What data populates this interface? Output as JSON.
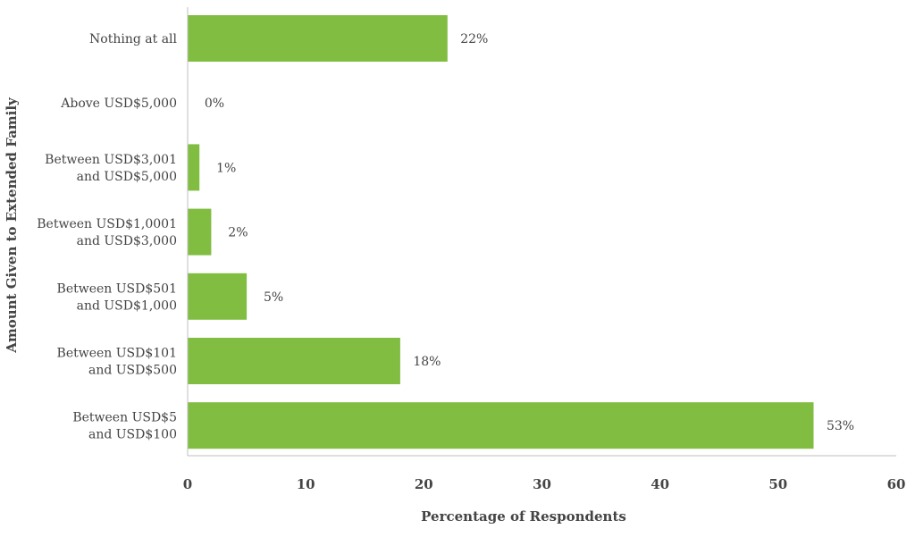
{
  "chart_data": {
    "type": "bar",
    "orientation": "horizontal",
    "categories": [
      [
        "Nothing at all"
      ],
      [
        "Above USD$5,000"
      ],
      [
        "Between USD$3,001",
        "and USD$5,000"
      ],
      [
        "Between USD$1,0001",
        "and USD$3,000"
      ],
      [
        "Between USD$501",
        "and USD$1,000"
      ],
      [
        "Between USD$101",
        "and USD$500"
      ],
      [
        "Between USD$5",
        "and USD$100"
      ]
    ],
    "values": [
      22,
      0,
      1,
      2,
      5,
      18,
      53
    ],
    "value_labels": [
      "22%",
      "0%",
      "1%",
      "2%",
      "5%",
      "18%",
      "53%"
    ],
    "xlabel": "Percentage of Respondents",
    "ylabel": "Amount Given to Extended Family",
    "xlim": [
      0,
      60
    ],
    "xticks": [
      0,
      10,
      20,
      30,
      40,
      50,
      60
    ],
    "grid": false,
    "legend": "none",
    "bar_color": "#80bd41",
    "axis_color": "#bfbfbf"
  }
}
